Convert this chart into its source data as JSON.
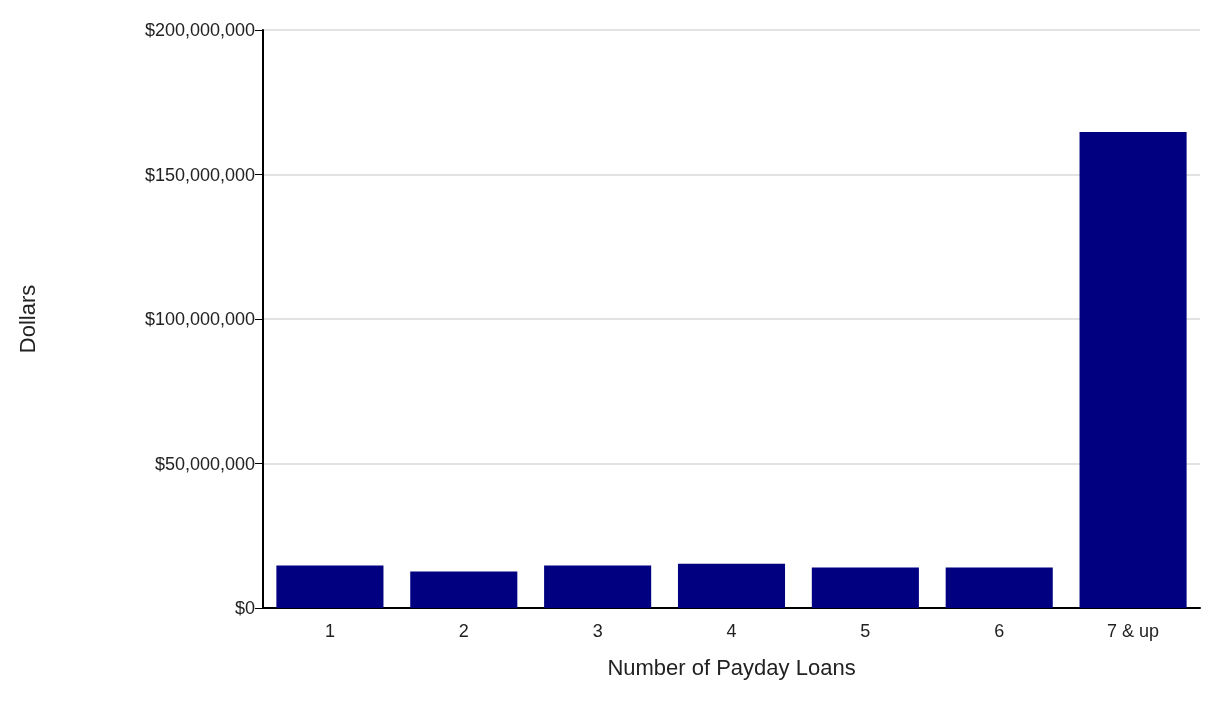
{
  "chart_data": {
    "type": "bar",
    "xlabel": "Number of Payday Loans",
    "ylabel": "Dollars",
    "categories": [
      "1",
      "2",
      "3",
      "4",
      "5",
      "6",
      "7 & up"
    ],
    "values": [
      14700000,
      12600000,
      14700000,
      15300000,
      14000000,
      14000000,
      164700000
    ],
    "color": "#000080",
    "ylim": [
      0,
      200000000
    ],
    "yticks": [
      {
        "value": 0,
        "label": "$0"
      },
      {
        "value": 50000000,
        "label": "$50,000,000"
      },
      {
        "value": 100000000,
        "label": "$100,000,000"
      },
      {
        "value": 150000000,
        "label": "$150,000,000"
      },
      {
        "value": 200000000,
        "label": "$200,000,000"
      }
    ],
    "grid": "y"
  }
}
